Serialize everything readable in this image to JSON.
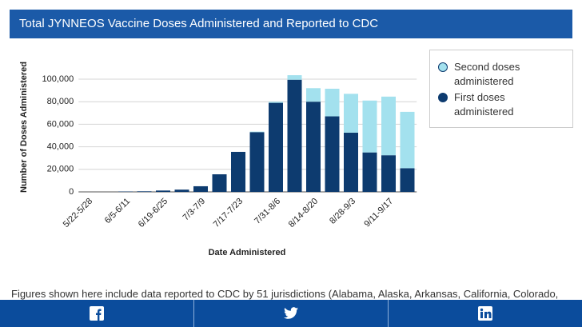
{
  "header": "Total JYNNEOS Vaccine Doses Administered and Reported to CDC",
  "chart_data": {
    "type": "stacked_bar",
    "x_label": "Date Administered",
    "y_label": "Number of Doses Administered",
    "categories": [
      "5/22-5/28",
      null,
      "6/5-6/11",
      null,
      "6/19-6/25",
      null,
      "7/3-7/9",
      null,
      "7/17-7/23",
      null,
      "7/31-8/6",
      null,
      "8/14-8/20",
      null,
      "8/28-9/3",
      null,
      "9/11-9/17",
      null
    ],
    "series": [
      {
        "name": "First doses administered",
        "color": "#0d3b6f",
        "values": [
          0,
          0,
          300,
          500,
          1200,
          2000,
          5000,
          15600,
          35500,
          53000,
          79000,
          99500,
          80000,
          67000,
          52500,
          35000,
          32500,
          21000
        ]
      },
      {
        "name": "Second doses administered",
        "color": "#a3e1ee",
        "values": [
          0,
          0,
          0,
          0,
          0,
          0,
          0,
          0,
          0,
          500,
          1000,
          4000,
          12000,
          24500,
          34500,
          46000,
          52000,
          50000
        ]
      }
    ],
    "ylim": [
      0,
      100000
    ],
    "yticks": [
      0,
      {
        "value": 20000,
        "label": "20,000"
      },
      {
        "value": 40000,
        "label": "40,000"
      },
      {
        "value": 60000,
        "label": "60,000"
      },
      {
        "value": 80000,
        "label": "80,000"
      },
      {
        "value": 100000,
        "label": "100,000"
      }
    ],
    "grid": true
  },
  "footer_text": "Figures shown here include data reported to CDC by 51 jurisdictions (Alabama, Alaska, Arkansas, California, Colorado,"
}
